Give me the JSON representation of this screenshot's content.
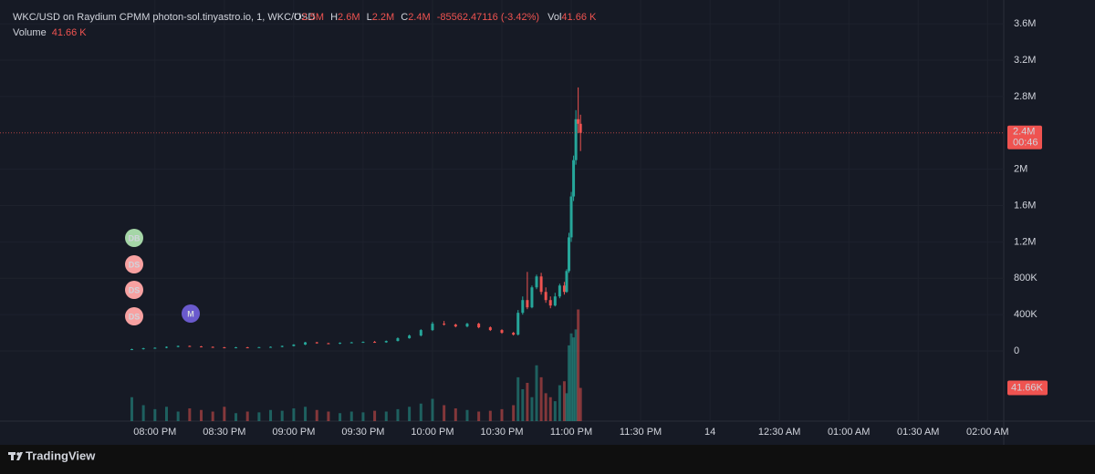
{
  "chart_data": {
    "type": "candlestick",
    "legend": {
      "symbol": "WKC/USD on Raydium CPMM photon-sol.tinyastro.io, 1, WKC/USD",
      "o_key": "O",
      "o": "2.5M",
      "h_key": "H",
      "h": "2.6M",
      "l_key": "L",
      "l": "2.2M",
      "c_key": "C",
      "c": "2.4M",
      "change": "-85562.47116 (-3.42%)",
      "vol_key": "Vol",
      "vol": "41.66 K",
      "volume_key": "Volume",
      "volume": "41.66 K"
    },
    "x": [
      "07:50 PM",
      "07:55 PM",
      "08:00 PM",
      "08:05 PM",
      "08:10 PM",
      "08:15 PM",
      "08:20 PM",
      "08:25 PM",
      "08:30 PM",
      "08:35 PM",
      "08:40 PM",
      "08:45 PM",
      "08:50 PM",
      "08:55 PM",
      "09:00 PM",
      "09:05 PM",
      "09:10 PM",
      "09:15 PM",
      "09:20 PM",
      "09:25 PM",
      "09:30 PM",
      "09:35 PM",
      "09:40 PM",
      "09:45 PM",
      "09:50 PM",
      "09:55 PM",
      "10:00 PM",
      "10:05 PM",
      "10:10 PM",
      "10:15 PM",
      "10:20 PM",
      "10:25 PM",
      "10:30 PM",
      "10:35 PM",
      "10:37 PM",
      "10:39 PM",
      "10:41 PM",
      "10:43 PM",
      "10:45 PM",
      "10:47 PM",
      "10:49 PM",
      "10:51 PM",
      "10:53 PM",
      "10:55 PM",
      "10:57 PM",
      "10:58 PM",
      "10:59 PM",
      "11:00 PM",
      "11:01 PM",
      "11:02 PM",
      "11:03 PM",
      "11:04 PM"
    ],
    "open": [
      15000,
      20000,
      30000,
      35000,
      45000,
      55000,
      50000,
      45000,
      40000,
      35000,
      40000,
      38000,
      42000,
      45000,
      55000,
      70000,
      95000,
      85000,
      80000,
      90000,
      95000,
      100000,
      95000,
      110000,
      140000,
      170000,
      230000,
      300000,
      290000,
      270000,
      300000,
      260000,
      230000,
      200000,
      180000,
      420000,
      560000,
      480000,
      700000,
      820000,
      650000,
      560000,
      500000,
      600000,
      720000,
      650000,
      880000,
      1250000,
      1700000,
      2100000,
      2550000,
      2500000
    ],
    "high": [
      25000,
      35000,
      40000,
      50000,
      60000,
      60000,
      55000,
      50000,
      45000,
      45000,
      45000,
      45000,
      50000,
      60000,
      75000,
      100000,
      100000,
      90000,
      95000,
      100000,
      105000,
      110000,
      115000,
      150000,
      180000,
      240000,
      320000,
      330000,
      300000,
      310000,
      310000,
      270000,
      240000,
      210000,
      450000,
      600000,
      870000,
      720000,
      840000,
      860000,
      700000,
      600000,
      640000,
      740000,
      760000,
      900000,
      1300000,
      1750000,
      2150000,
      2650000,
      2900000,
      2600000
    ],
    "low": [
      10000,
      15000,
      25000,
      30000,
      40000,
      45000,
      40000,
      35000,
      30000,
      30000,
      35000,
      35000,
      40000,
      40000,
      50000,
      65000,
      80000,
      75000,
      75000,
      85000,
      90000,
      90000,
      90000,
      105000,
      135000,
      160000,
      220000,
      280000,
      260000,
      260000,
      250000,
      220000,
      190000,
      170000,
      170000,
      400000,
      460000,
      470000,
      680000,
      620000,
      530000,
      470000,
      490000,
      580000,
      620000,
      640000,
      860000,
      1200000,
      1650000,
      2050000,
      2400000,
      2200000
    ],
    "close": [
      20000,
      30000,
      35000,
      45000,
      55000,
      50000,
      45000,
      40000,
      35000,
      40000,
      38000,
      42000,
      45000,
      55000,
      70000,
      95000,
      85000,
      80000,
      90000,
      95000,
      100000,
      95000,
      110000,
      140000,
      170000,
      230000,
      300000,
      290000,
      270000,
      300000,
      260000,
      230000,
      200000,
      180000,
      420000,
      560000,
      480000,
      700000,
      820000,
      650000,
      560000,
      500000,
      600000,
      720000,
      650000,
      880000,
      1250000,
      1700000,
      2100000,
      2550000,
      2500000,
      2400000
    ],
    "volume": [
      30000,
      20000,
      15000,
      18000,
      12000,
      16000,
      14000,
      12000,
      18000,
      10000,
      12000,
      11000,
      14000,
      13000,
      16000,
      18000,
      14000,
      12000,
      10000,
      12000,
      11000,
      13000,
      12000,
      15000,
      18000,
      22000,
      28000,
      20000,
      16000,
      14000,
      12000,
      13000,
      15000,
      20000,
      55000,
      40000,
      48000,
      30000,
      70000,
      55000,
      35000,
      30000,
      25000,
      45000,
      50000,
      35000,
      95000,
      110000,
      105000,
      115000,
      140000,
      41660
    ],
    "last_volume_label": "41.66K",
    "up_color": "#26a69a",
    "down_color": "#ef5350",
    "xlim": [
      "06:53 PM",
      "02:07 AM"
    ],
    "xticks": [
      "08:00 PM",
      "08:30 PM",
      "09:00 PM",
      "09:30 PM",
      "10:00 PM",
      "10:30 PM",
      "11:00 PM",
      "11:30 PM",
      {
        "value": "12:00 AM",
        "label": "14"
      },
      "12:30 AM",
      "01:00 AM",
      "01:30 AM",
      "02:00 AM"
    ],
    "ylim": [
      -772000,
      3862000
    ],
    "yticks": [
      0,
      {
        "value": 400000,
        "label": "400K"
      },
      {
        "value": 800000,
        "label": "800K"
      },
      {
        "value": 1200000,
        "label": "1.2M"
      },
      {
        "value": 1600000,
        "label": "1.6M"
      },
      {
        "value": 2000000,
        "label": "2M"
      },
      {
        "value": 2800000,
        "label": "2.8M"
      },
      {
        "value": 3200000,
        "label": "3.2M"
      },
      {
        "value": 3600000,
        "label": "3.6M"
      }
    ],
    "vlim": [
      0,
      160000
    ],
    "price_tag": {
      "value": 2400000,
      "label": "2.4M",
      "countdown": "00:46"
    },
    "markers": [
      {
        "label": "DB",
        "color": "#a5d6a7"
      },
      {
        "label": "DS",
        "color": "#f7a1a1"
      },
      {
        "label": "DS",
        "color": "#f7a1a1"
      },
      {
        "label": "DS",
        "color": "#f7a1a1"
      },
      {
        "label": "M",
        "color": "#6a5acd"
      }
    ],
    "grid": true,
    "brand": "TradingView"
  }
}
